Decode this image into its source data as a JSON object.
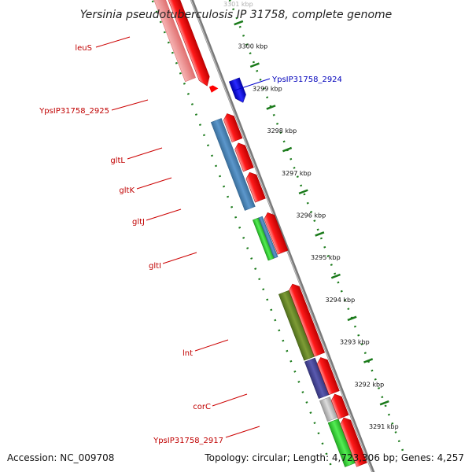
{
  "title": "Yersinia pseudotuberculosis IP 31758, complete genome",
  "footer": {
    "accession": "Accession: NC_009708",
    "summary": "Topology: circular; Length: 4,723,306 bp; Genes: 4,257"
  },
  "ticks": [
    "3301 kbp",
    "3300 kbp",
    "3299 kbp",
    "3298 kbp",
    "3297 kbp",
    "3296 kbp",
    "3295 kbp",
    "3294 kbp",
    "3293 kbp",
    "3292 kbp",
    "3291 kbp"
  ],
  "gene_labels": [
    {
      "text": "leuS",
      "color": "#c00000"
    },
    {
      "text": "YpsIP31758_2924",
      "color": "#0000bb"
    },
    {
      "text": "YpsIP31758_2925",
      "color": "#c00000"
    },
    {
      "text": "gltL",
      "color": "#c00000"
    },
    {
      "text": "gltK",
      "color": "#c00000"
    },
    {
      "text": "gltJ",
      "color": "#c00000"
    },
    {
      "text": "gltI",
      "color": "#c00000"
    },
    {
      "text": "lnt",
      "color": "#c00000"
    },
    {
      "text": "corC",
      "color": "#c00000"
    },
    {
      "text": "YpsIP31758_2917",
      "color": "#c00000"
    }
  ],
  "colors": {
    "forward_strand": "#ff0000",
    "reverse_strand": "#0000ff",
    "backbone": "#888888",
    "tick": "#1a7a1a",
    "steelblue_feature": "#4a86c0",
    "green_feature": "#33cc33",
    "olive_feature": "#6b8a2a",
    "indigo_feature": "#4a4a9a",
    "pink_feature": "#f08080",
    "grey_feature": "#bbbbbb"
  }
}
